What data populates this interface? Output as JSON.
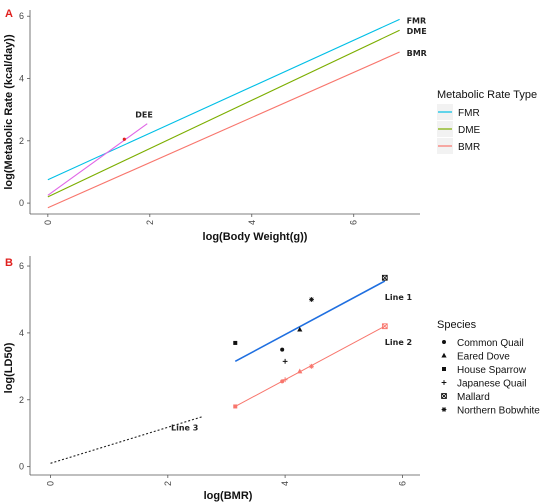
{
  "chart_data": [
    {
      "panel": "A",
      "type": "line",
      "xlabel": "log(Body Weight(g))",
      "ylabel": "log(Metabolic Rate (kcal/day))",
      "xlim": [
        -0.35,
        7.3
      ],
      "ylim": [
        -0.35,
        6.2
      ],
      "xticks": [
        0,
        2,
        4,
        6
      ],
      "yticks": [
        0,
        2,
        4,
        6
      ],
      "grid": false,
      "legend": {
        "title": "Metabolic Rate Type",
        "position": "right",
        "entries": [
          "FMR",
          "DME",
          "BMR"
        ]
      },
      "colors": {
        "FMR": "#00bfe6",
        "DME": "#7cae00",
        "BMR": "#f8766d",
        "DEE": "#e066e6",
        "point": "#e0201e"
      },
      "series": [
        {
          "name": "FMR",
          "x": [
            0,
            6.9
          ],
          "y": [
            0.75,
            5.9
          ],
          "end_label": "FMR"
        },
        {
          "name": "DME",
          "x": [
            0,
            6.9
          ],
          "y": [
            0.2,
            5.55
          ],
          "end_label": "DME"
        },
        {
          "name": "BMR",
          "x": [
            0,
            6.9
          ],
          "y": [
            -0.15,
            4.85
          ],
          "end_label": "BMR"
        },
        {
          "x": [
            0,
            1.95
          ],
          "y": [
            0.25,
            2.55
          ],
          "end_label": "DEE"
        }
      ],
      "points": [
        {
          "x": 1.5,
          "y": 2.05
        }
      ]
    },
    {
      "panel": "B",
      "type": "scatter",
      "xlabel": "log(BMR)",
      "ylabel": "log(LD50)",
      "xlim": [
        -0.35,
        6.3
      ],
      "ylim": [
        -0.25,
        6.3
      ],
      "xticks": [
        0,
        2,
        4,
        6
      ],
      "yticks": [
        0,
        2,
        4,
        6
      ],
      "grid": false,
      "legend": {
        "title": "Species",
        "position": "right",
        "entries": [
          {
            "name": "Common Quail",
            "symbol": "circle"
          },
          {
            "name": "Eared Dove",
            "symbol": "triangle"
          },
          {
            "name": "House Sparrow",
            "symbol": "square"
          },
          {
            "name": "Japanese Quail",
            "symbol": "plus"
          },
          {
            "name": "Mallard",
            "symbol": "boxed-square"
          },
          {
            "name": "Northern Bobwhite",
            "symbol": "asterisk"
          }
        ]
      },
      "lines": [
        {
          "label": "Line 1",
          "color": "#1f6fe0",
          "style": "solid",
          "x": [
            3.15,
            5.7
          ],
          "y": [
            3.15,
            5.55
          ]
        },
        {
          "label": "Line 2",
          "color": "#f8766d",
          "style": "solid",
          "x": [
            3.15,
            5.7
          ],
          "y": [
            1.8,
            4.2
          ]
        },
        {
          "label": "Line 3",
          "color": "#222222",
          "style": "dashed",
          "x": [
            0,
            2.6
          ],
          "y": [
            0.1,
            1.5
          ]
        }
      ],
      "points_black": [
        {
          "species": "House Sparrow",
          "x": 3.15,
          "y": 3.7
        },
        {
          "species": "Common Quail",
          "x": 3.95,
          "y": 3.5
        },
        {
          "species": "Japanese Quail",
          "x": 4.0,
          "y": 3.15
        },
        {
          "species": "Eared Dove",
          "x": 4.25,
          "y": 4.1
        },
        {
          "species": "Northern Bobwhite",
          "x": 4.45,
          "y": 5.0
        },
        {
          "species": "Mallard",
          "x": 5.7,
          "y": 5.65
        }
      ],
      "points_red": [
        {
          "species": "House Sparrow",
          "x": 3.15,
          "y": 1.8
        },
        {
          "species": "Common Quail",
          "x": 3.95,
          "y": 2.55
        },
        {
          "species": "Japanese Quail",
          "x": 4.0,
          "y": 2.6
        },
        {
          "species": "Eared Dove",
          "x": 4.25,
          "y": 2.85
        },
        {
          "species": "Northern Bobwhite",
          "x": 4.45,
          "y": 3.0
        },
        {
          "species": "Mallard",
          "x": 5.7,
          "y": 4.2
        }
      ]
    }
  ]
}
